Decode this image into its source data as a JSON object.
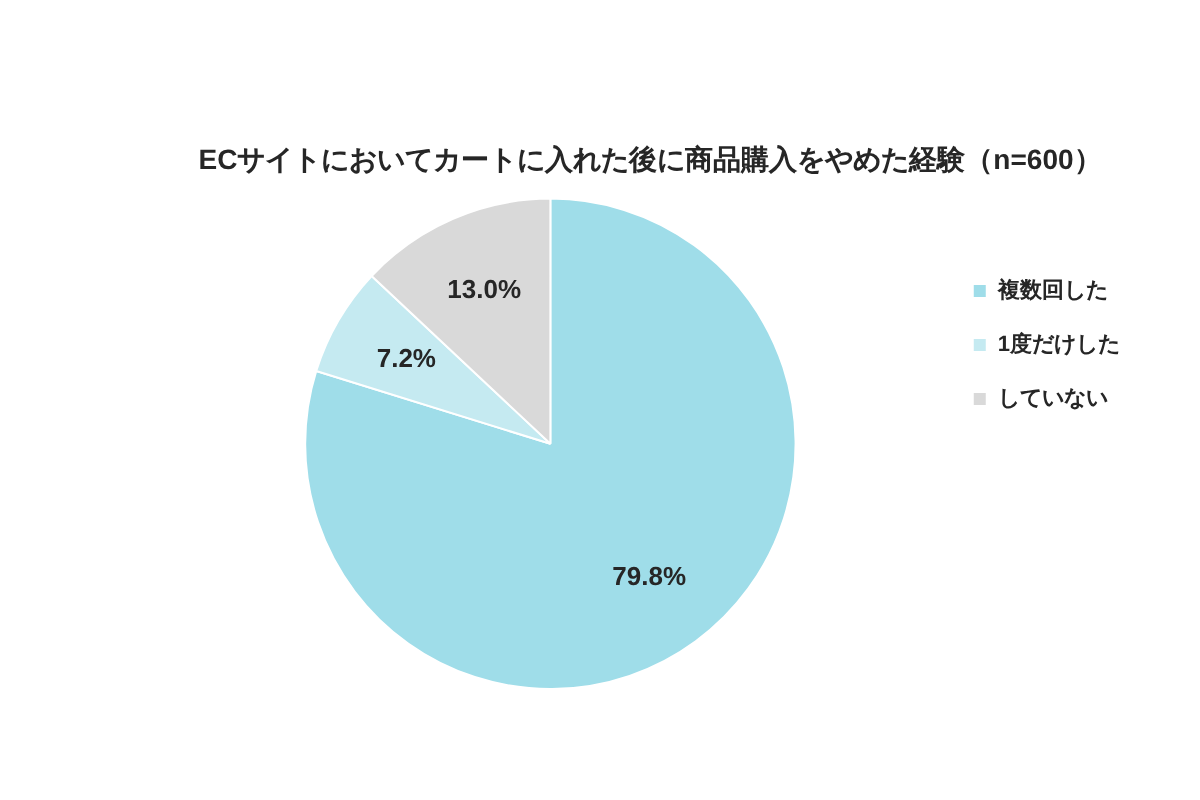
{
  "chart_data": {
    "type": "pie",
    "title": "ECサイトにおいてカートに入れた後に商品購入をやめた経験（n=600）",
    "categories": [
      "複数回した",
      "1度だけした",
      "していない"
    ],
    "values": [
      79.8,
      7.2,
      13.0
    ],
    "value_labels": [
      "79.8%",
      "7.2%",
      "13.0%"
    ],
    "colors": [
      "#9fdde9",
      "#c5eaf1",
      "#d9d9d9"
    ],
    "legend": "right"
  }
}
